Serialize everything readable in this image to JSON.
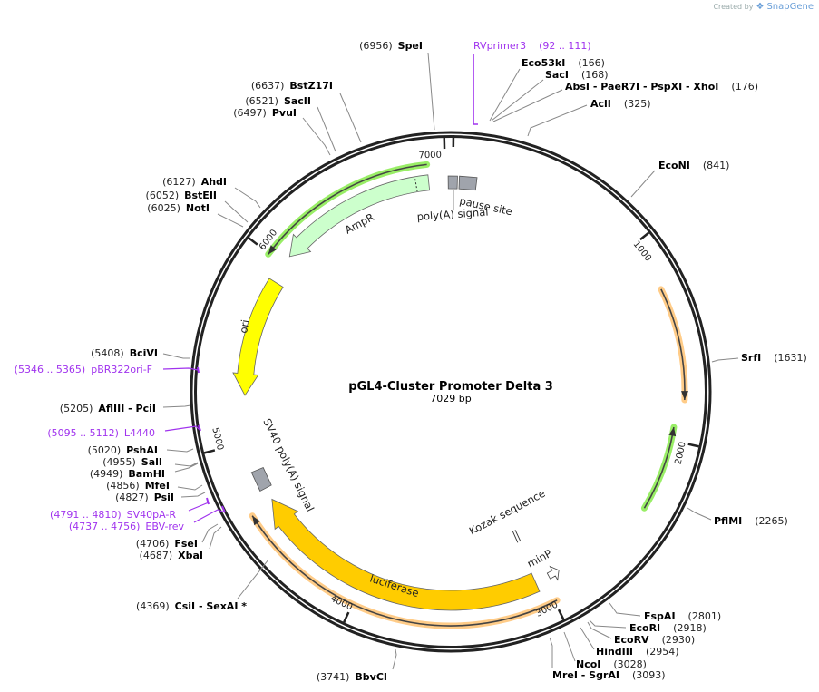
{
  "watermark": {
    "prefix": "Created by",
    "brand": "SnapGene"
  },
  "plasmid": {
    "name": "pGL4-Cluster Promoter Delta 3",
    "length_label": "7029 bp",
    "total_bp": 7029
  },
  "ticks": [
    "1000",
    "2000",
    "3000",
    "4000",
    "5000",
    "6000",
    "7000"
  ],
  "features": {
    "ampr": "AmpR",
    "ori": "ori",
    "luciferase": "luciferase",
    "minp": "minP",
    "kozak": "Kozak sequence",
    "sv40": "SV40 poly(A) signal",
    "polya": "poly(A) signal",
    "pause": "pause site"
  },
  "sites": {
    "spei": {
      "pos": "(6956)",
      "name": "SpeI"
    },
    "bstz17i": {
      "pos": "(6637)",
      "name": "BstZ17I"
    },
    "sacii": {
      "pos": "(6521)",
      "name": "SacII"
    },
    "pvui": {
      "pos": "(6497)",
      "name": "PvuI"
    },
    "ahdi": {
      "pos": "(6127)",
      "name": "AhdI"
    },
    "bsteii": {
      "pos": "(6052)",
      "name": "BstEII"
    },
    "noti": {
      "pos": "(6025)",
      "name": "NotI"
    },
    "bcivi": {
      "pos": "(5408)",
      "name": "BciVI"
    },
    "afliii": {
      "pos": "(5205)",
      "name": "AflIII   - PciI"
    },
    "pshai": {
      "pos": "(5020)",
      "name": "PshAI"
    },
    "sali": {
      "pos": "(4955)",
      "name": "SalI"
    },
    "bamhi": {
      "pos": "(4949)",
      "name": "BamHI"
    },
    "mfei": {
      "pos": "(4856)",
      "name": "MfeI"
    },
    "psii": {
      "pos": "(4827)",
      "name": "PsiI"
    },
    "fsei": {
      "pos": "(4706)",
      "name": "FseI"
    },
    "xbai": {
      "pos": "(4687)",
      "name": "XbaI"
    },
    "csii": {
      "pos": "(4369)",
      "name": "CsiI  - SexAI *"
    },
    "bbvci": {
      "pos": "(3741)",
      "name": "BbvCI"
    },
    "eco53ki": {
      "name": "Eco53kI",
      "pos": "(166)"
    },
    "saci": {
      "name": "SacI",
      "pos": "(168)"
    },
    "absi": {
      "name": "AbsI  - PaeR7I  - PspXI  - XhoI",
      "pos": "(176)"
    },
    "acli": {
      "name": "AclI",
      "pos": "(325)"
    },
    "econi": {
      "name": "EcoNI",
      "pos": "(841)"
    },
    "srfi": {
      "name": "SrfI",
      "pos": "(1631)"
    },
    "pflmi": {
      "name": "PflMI",
      "pos": "(2265)"
    },
    "fspai": {
      "name": "FspAI",
      "pos": "(2801)"
    },
    "ecori": {
      "name": "EcoRI",
      "pos": "(2918)"
    },
    "ecorv": {
      "name": "EcoRV",
      "pos": "(2930)"
    },
    "hindiii": {
      "name": "HindIII",
      "pos": "(2954)"
    },
    "ncoi": {
      "name": "NcoI",
      "pos": "(3028)"
    },
    "srgai": {
      "name": "MreI  - SgrAI",
      "pos": "(3093)"
    }
  },
  "primers": {
    "rvprimer3": {
      "name": "RVprimer3",
      "range": "(92 .. 111)"
    },
    "pbr322ori": {
      "name": "pBR322ori-F",
      "range": "(5346 .. 5365)"
    },
    "l4440": {
      "name": "L4440",
      "range": "(5095 .. 5112)"
    },
    "sv40par": {
      "name": "SV40pA-R",
      "range": "(4791 .. 4810)"
    },
    "ebvrev": {
      "name": "EBV-rev",
      "range": "(4737 .. 4756)"
    }
  },
  "colors": {
    "ampr": "#ccffcc",
    "ori": "#ffff00",
    "luciferase": "#ffcc00",
    "primer": "#a033ee",
    "orf_green": "#99ee66",
    "orf_orange": "#ffcc88",
    "misc": "#a0a4ac"
  }
}
